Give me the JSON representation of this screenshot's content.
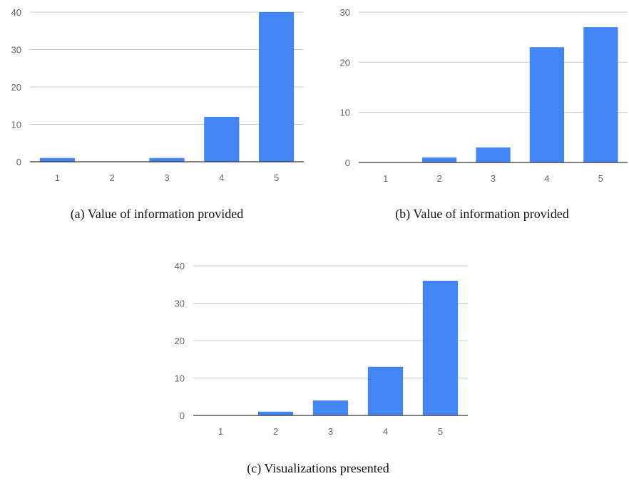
{
  "chart_data": [
    {
      "type": "bar",
      "caption": "(a) Value of information provided",
      "categories": [
        "1",
        "2",
        "3",
        "4",
        "5"
      ],
      "values": [
        1,
        0,
        1,
        12,
        40
      ],
      "ylim": [
        0,
        40
      ],
      "yticks": [
        0,
        10,
        20,
        30,
        40
      ],
      "grid": true,
      "bar_color": "#4285F4"
    },
    {
      "type": "bar",
      "caption": "(b) Value of information provided",
      "categories": [
        "1",
        "2",
        "3",
        "4",
        "5"
      ],
      "values": [
        0,
        1,
        3,
        23,
        27
      ],
      "ylim": [
        0,
        30
      ],
      "yticks": [
        0,
        10,
        20,
        30
      ],
      "grid": true,
      "bar_color": "#4285F4"
    },
    {
      "type": "bar",
      "caption": "(c) Visualizations presented",
      "categories": [
        "1",
        "2",
        "3",
        "4",
        "5"
      ],
      "values": [
        0,
        1,
        4,
        13,
        36
      ],
      "ylim": [
        0,
        40
      ],
      "yticks": [
        0,
        10,
        20,
        30,
        40
      ],
      "grid": true,
      "bar_color": "#4285F4"
    }
  ]
}
